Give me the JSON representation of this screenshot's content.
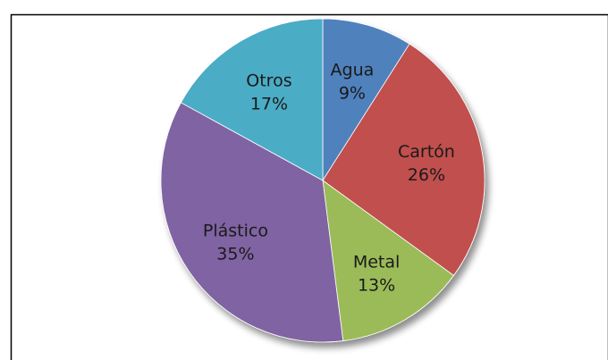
{
  "chart_data": {
    "type": "pie",
    "title": "",
    "slices": [
      {
        "label": "Agua",
        "value": 9,
        "display": "9%",
        "color": "#4f81bd"
      },
      {
        "label": "Cartón",
        "value": 26,
        "display": "26%",
        "color": "#c0504d"
      },
      {
        "label": "Metal",
        "value": 13,
        "display": "13%",
        "color": "#9bbb59"
      },
      {
        "label": "Plástico",
        "value": 35,
        "display": "35%",
        "color": "#8064a2"
      },
      {
        "label": "Otros",
        "value": 17,
        "display": "17%",
        "color": "#4bacc6"
      }
    ],
    "legend": "none",
    "start_angle_deg": 0,
    "direction": "clockwise",
    "labels_inside": true
  }
}
